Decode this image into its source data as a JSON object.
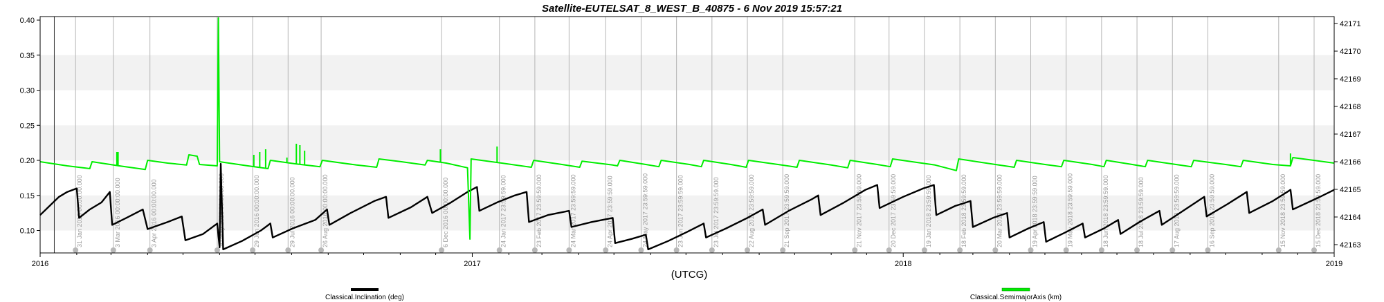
{
  "chart_data": {
    "type": "line",
    "title": "Satellite-EUTELSAT_8_WEST_B_40875 -  6 Nov 2019 15:57:21",
    "xlabel": "(UTCG)",
    "x_ticks": [
      "2016",
      "2017",
      "2018",
      "2019"
    ],
    "xlim": [
      "2016-01-01",
      "2019-01-01"
    ],
    "y_left": {
      "lim": [
        0.068,
        0.405
      ],
      "ticks": [
        "0.10",
        "0.15",
        "0.20",
        "0.25",
        "0.30",
        "0.35",
        "0.40"
      ]
    },
    "y_right": {
      "lim": [
        42162.7,
        42171.25
      ],
      "ticks": [
        "42163",
        "42164",
        "42165",
        "42166",
        "42167",
        "42168",
        "42169",
        "42170",
        "42171"
      ]
    },
    "grid": "alternating horizontal bands",
    "legend_position": "bottom",
    "marker_lines": [
      {
        "date": "2016-01-31",
        "label": "31 Jan 2016 00:00:00.000"
      },
      {
        "date": "2016-03-03",
        "label": "3 Mar 2016 00:00:00.000"
      },
      {
        "date": "2016-04-03",
        "label": "3 Apr 2016 00:00:00.000"
      },
      {
        "date": "2016-05-30",
        "label": "30 May 2016 00:00:00.000"
      },
      {
        "date": "2016-06-29",
        "label": "29 Jun 2016 00:00:00.000"
      },
      {
        "date": "2016-07-29",
        "label": "29 Jul 2016 00:00:00.000"
      },
      {
        "date": "2016-08-26",
        "label": "26 Aug 2016 00:00:00.000"
      },
      {
        "date": "2016-12-06",
        "label": "6 Dec 2016 00:00:00.000"
      },
      {
        "date": "2017-01-24",
        "label": "24 Jan 2017 23:59:59.000"
      },
      {
        "date": "2017-02-23",
        "label": "23 Feb 2017 23:59:59.000"
      },
      {
        "date": "2017-03-24",
        "label": "24 Mar 2017 23:59:59.000"
      },
      {
        "date": "2017-04-24",
        "label": "24 Apr 2017 23:59:59.000"
      },
      {
        "date": "2017-05-24",
        "label": "24 May 2017 23:59:59.000"
      },
      {
        "date": "2017-06-23",
        "label": "23 Jun 2017 23:59:59.000"
      },
      {
        "date": "2017-07-23",
        "label": "23 Jul 2017 23:59:59.000"
      },
      {
        "date": "2017-08-22",
        "label": "22 Aug 2017 23:59:59.000"
      },
      {
        "date": "2017-09-21",
        "label": "21 Sep 2017 23:59:59.000"
      },
      {
        "date": "2017-11-21",
        "label": "21 Nov 2017 23:59:59.000"
      },
      {
        "date": "2017-12-20",
        "label": "20 Dec 2017 23:59:59.000"
      },
      {
        "date": "2018-01-19",
        "label": "19 Jan 2018 23:59:59.000"
      },
      {
        "date": "2018-02-18",
        "label": "18 Feb 2018 23:59:59.000"
      },
      {
        "date": "2018-03-20",
        "label": "20 Mar 2018 23:59:59.000"
      },
      {
        "date": "2018-04-19",
        "label": "19 Apr 2018 23:59:59.000"
      },
      {
        "date": "2018-05-19",
        "label": "19 May 2018 23:59:59.000"
      },
      {
        "date": "2018-06-18",
        "label": "18 Jun 2018 23:59:59.000"
      },
      {
        "date": "2018-07-18",
        "label": "18 Jul 2018 23:59:59.000"
      },
      {
        "date": "2018-08-17",
        "label": "17 Aug 2018 23:59:59.000"
      },
      {
        "date": "2018-09-16",
        "label": "16 Sep 2018 23:59:59.000"
      },
      {
        "date": "2018-11-15",
        "label": "15 Nov 2018 23:59:59.000"
      },
      {
        "date": "2018-12-15",
        "label": "15 Dec 2018 23:59:59.000"
      }
    ],
    "series": [
      {
        "name": "Classical.Inclination (deg)",
        "axis": "left",
        "color": "#000000",
        "points": [
          [
            "2016-01-01",
            0.122
          ],
          [
            "2016-01-09",
            0.135
          ],
          [
            "2016-01-17",
            0.148
          ],
          [
            "2016-01-24",
            0.155
          ],
          [
            "2016-02-01",
            0.16
          ],
          [
            "2016-02-03",
            0.118
          ],
          [
            "2016-02-12",
            0.13
          ],
          [
            "2016-02-22",
            0.14
          ],
          [
            "2016-02-29",
            0.155
          ],
          [
            "2016-03-02",
            0.108
          ],
          [
            "2016-03-14",
            0.118
          ],
          [
            "2016-03-28",
            0.13
          ],
          [
            "2016-04-01",
            0.102
          ],
          [
            "2016-04-18",
            0.112
          ],
          [
            "2016-04-30",
            0.12
          ],
          [
            "2016-05-03",
            0.086
          ],
          [
            "2016-05-18",
            0.095
          ],
          [
            "2016-05-30",
            0.11
          ],
          [
            "2016-06-01",
            0.076
          ],
          [
            "2016-06-02",
            0.195
          ],
          [
            "2016-06-04",
            0.073
          ],
          [
            "2016-06-20",
            0.085
          ],
          [
            "2016-07-06",
            0.1
          ],
          [
            "2016-07-14",
            0.11
          ],
          [
            "2016-07-16",
            0.09
          ],
          [
            "2016-08-02",
            0.103
          ],
          [
            "2016-08-21",
            0.115
          ],
          [
            "2016-08-31",
            0.13
          ],
          [
            "2016-09-02",
            0.108
          ],
          [
            "2016-09-20",
            0.125
          ],
          [
            "2016-10-10",
            0.142
          ],
          [
            "2016-10-20",
            0.148
          ],
          [
            "2016-10-22",
            0.118
          ],
          [
            "2016-11-10",
            0.133
          ],
          [
            "2016-11-24",
            0.148
          ],
          [
            "2016-11-28",
            0.125
          ],
          [
            "2016-12-14",
            0.14
          ],
          [
            "2016-12-28",
            0.155
          ],
          [
            "2017-01-05",
            0.162
          ],
          [
            "2017-01-07",
            0.128
          ],
          [
            "2017-01-22",
            0.14
          ],
          [
            "2017-02-06",
            0.15
          ],
          [
            "2017-02-16",
            0.155
          ],
          [
            "2017-02-18",
            0.112
          ],
          [
            "2017-03-06",
            0.122
          ],
          [
            "2017-03-24",
            0.128
          ],
          [
            "2017-03-26",
            0.105
          ],
          [
            "2017-04-12",
            0.112
          ],
          [
            "2017-04-30",
            0.118
          ],
          [
            "2017-05-02",
            0.082
          ],
          [
            "2017-05-16",
            0.088
          ],
          [
            "2017-05-28",
            0.094
          ],
          [
            "2017-05-30",
            0.073
          ],
          [
            "2017-06-16",
            0.085
          ],
          [
            "2017-07-02",
            0.098
          ],
          [
            "2017-07-16",
            0.11
          ],
          [
            "2017-07-18",
            0.09
          ],
          [
            "2017-08-04",
            0.103
          ],
          [
            "2017-08-22",
            0.118
          ],
          [
            "2017-09-04",
            0.13
          ],
          [
            "2017-09-06",
            0.108
          ],
          [
            "2017-09-26",
            0.128
          ],
          [
            "2017-10-16",
            0.145
          ],
          [
            "2017-10-21",
            0.15
          ],
          [
            "2017-10-23",
            0.122
          ],
          [
            "2017-11-12",
            0.14
          ],
          [
            "2017-11-30",
            0.158
          ],
          [
            "2017-12-10",
            0.165
          ],
          [
            "2017-12-12",
            0.132
          ],
          [
            "2018-01-01",
            0.148
          ],
          [
            "2018-01-18",
            0.16
          ],
          [
            "2018-01-27",
            0.165
          ],
          [
            "2018-01-29",
            0.122
          ],
          [
            "2018-02-14",
            0.135
          ],
          [
            "2018-02-27",
            0.142
          ],
          [
            "2018-03-01",
            0.105
          ],
          [
            "2018-03-18",
            0.118
          ],
          [
            "2018-03-30",
            0.125
          ],
          [
            "2018-04-01",
            0.09
          ],
          [
            "2018-04-17",
            0.103
          ],
          [
            "2018-04-30",
            0.112
          ],
          [
            "2018-05-02",
            0.084
          ],
          [
            "2018-05-18",
            0.097
          ],
          [
            "2018-06-02",
            0.11
          ],
          [
            "2018-06-04",
            0.09
          ],
          [
            "2018-06-20",
            0.103
          ],
          [
            "2018-07-02",
            0.115
          ],
          [
            "2018-07-04",
            0.095
          ],
          [
            "2018-07-20",
            0.112
          ],
          [
            "2018-08-06",
            0.128
          ],
          [
            "2018-08-08",
            0.108
          ],
          [
            "2018-08-26",
            0.128
          ],
          [
            "2018-09-13",
            0.148
          ],
          [
            "2018-09-15",
            0.12
          ],
          [
            "2018-10-03",
            0.138
          ],
          [
            "2018-10-19",
            0.155
          ],
          [
            "2018-10-21",
            0.125
          ],
          [
            "2018-11-10",
            0.142
          ],
          [
            "2018-11-25",
            0.158
          ],
          [
            "2018-11-27",
            0.13
          ],
          [
            "2018-12-20",
            0.148
          ],
          [
            "2019-01-01",
            0.158
          ]
        ]
      },
      {
        "name": "Classical.SemimajorAxis (km)",
        "axis": "right",
        "color": "#00ee00",
        "points": [
          [
            "2016-01-01",
            42166.0
          ],
          [
            "2016-01-24",
            42165.85
          ],
          [
            "2016-02-12",
            42165.75
          ],
          [
            "2016-02-14",
            42166.0
          ],
          [
            "2016-03-08",
            42165.85
          ],
          [
            "2016-03-30",
            42165.72
          ],
          [
            "2016-04-01",
            42166.05
          ],
          [
            "2016-04-18",
            42165.95
          ],
          [
            "2016-05-04",
            42165.88
          ],
          [
            "2016-05-06",
            42166.25
          ],
          [
            "2016-05-13",
            42166.2
          ],
          [
            "2016-05-15",
            42165.9
          ],
          [
            "2016-05-30",
            42165.85
          ],
          [
            "2016-05-31",
            42171.2
          ],
          [
            "2016-06-01",
            42166.0
          ],
          [
            "2016-06-25",
            42165.85
          ],
          [
            "2016-07-12",
            42165.75
          ],
          [
            "2016-07-14",
            42166.05
          ],
          [
            "2016-08-05",
            42165.92
          ],
          [
            "2016-08-25",
            42165.82
          ],
          [
            "2016-08-27",
            42166.05
          ],
          [
            "2016-09-25",
            42165.88
          ],
          [
            "2016-10-12",
            42165.8
          ],
          [
            "2016-10-14",
            42166.1
          ],
          [
            "2016-11-02",
            42166.0
          ],
          [
            "2016-11-22",
            42165.88
          ],
          [
            "2016-11-24",
            42166.05
          ],
          [
            "2016-12-10",
            42165.95
          ],
          [
            "2016-12-28",
            42165.78
          ],
          [
            "2016-12-30",
            42163.2
          ],
          [
            "2016-12-31",
            42166.1
          ],
          [
            "2017-01-26",
            42165.95
          ],
          [
            "2017-02-20",
            42165.8
          ],
          [
            "2017-02-22",
            42166.05
          ],
          [
            "2017-03-18",
            42165.9
          ],
          [
            "2017-04-02",
            42165.8
          ],
          [
            "2017-04-04",
            42166.02
          ],
          [
            "2017-04-30",
            42165.88
          ],
          [
            "2017-05-04",
            42165.85
          ],
          [
            "2017-05-06",
            42166.05
          ],
          [
            "2017-05-28",
            42165.9
          ],
          [
            "2017-06-08",
            42165.82
          ],
          [
            "2017-06-10",
            42166.05
          ],
          [
            "2017-07-04",
            42165.9
          ],
          [
            "2017-07-14",
            42165.82
          ],
          [
            "2017-07-16",
            42166.05
          ],
          [
            "2017-08-08",
            42165.9
          ],
          [
            "2017-08-21",
            42165.8
          ],
          [
            "2017-08-23",
            42166.05
          ],
          [
            "2017-09-20",
            42165.88
          ],
          [
            "2017-10-03",
            42165.8
          ],
          [
            "2017-10-05",
            42166.05
          ],
          [
            "2017-11-01",
            42165.88
          ],
          [
            "2017-11-15",
            42165.78
          ],
          [
            "2017-11-17",
            42166.05
          ],
          [
            "2017-12-10",
            42165.9
          ],
          [
            "2017-12-21",
            42165.82
          ],
          [
            "2017-12-23",
            42166.1
          ],
          [
            "2018-01-28",
            42165.88
          ],
          [
            "2018-02-15",
            42165.68
          ],
          [
            "2018-02-17",
            42166.1
          ],
          [
            "2018-03-20",
            42165.9
          ],
          [
            "2018-04-05",
            42165.8
          ],
          [
            "2018-04-07",
            42166.05
          ],
          [
            "2018-05-01",
            42165.9
          ],
          [
            "2018-05-15",
            42165.82
          ],
          [
            "2018-05-17",
            42166.05
          ],
          [
            "2018-06-10",
            42165.9
          ],
          [
            "2018-06-20",
            42165.82
          ],
          [
            "2018-06-22",
            42166.05
          ],
          [
            "2018-07-14",
            42165.9
          ],
          [
            "2018-07-25",
            42165.82
          ],
          [
            "2018-07-27",
            42166.05
          ],
          [
            "2018-08-20",
            42165.9
          ],
          [
            "2018-09-02",
            42165.82
          ],
          [
            "2018-09-04",
            42166.05
          ],
          [
            "2018-10-01",
            42165.9
          ],
          [
            "2018-10-14",
            42165.82
          ],
          [
            "2018-10-16",
            42166.05
          ],
          [
            "2018-11-10",
            42165.9
          ],
          [
            "2018-11-25",
            42165.85
          ],
          [
            "2018-11-27",
            42166.15
          ],
          [
            "2019-01-01",
            42165.95
          ]
        ],
        "spikes": [
          [
            "2016-03-06",
            42166.35
          ],
          [
            "2016-03-07",
            42166.35
          ],
          [
            "2016-06-30",
            42166.25
          ],
          [
            "2016-07-05",
            42166.35
          ],
          [
            "2016-07-10",
            42166.45
          ],
          [
            "2016-07-28",
            42166.15
          ],
          [
            "2016-08-05",
            42166.65
          ],
          [
            "2016-08-08",
            42166.6
          ],
          [
            "2016-08-12",
            42166.4
          ],
          [
            "2016-12-05",
            42166.45
          ],
          [
            "2017-01-22",
            42166.55
          ],
          [
            "2018-11-25",
            42166.3
          ]
        ]
      }
    ]
  },
  "legend": {
    "left_label": "Classical.Inclination (deg)",
    "right_label": "Classical.SemimajorAxis (km)"
  }
}
